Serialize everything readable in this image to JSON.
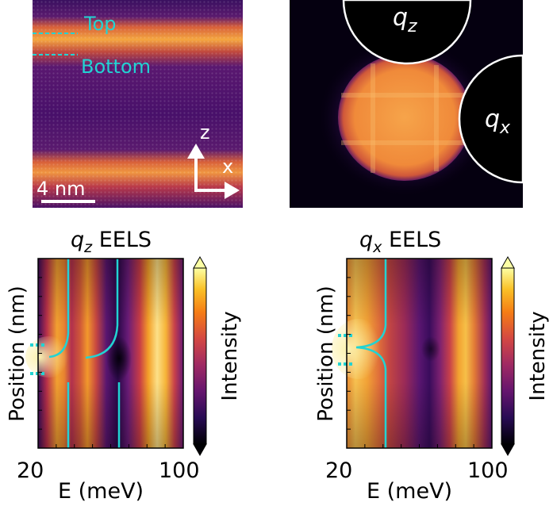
{
  "stem_image": {
    "top_label": "Top",
    "bottom_label": "Bottom",
    "scale_bar": "4 nm",
    "axis_z": "z",
    "axis_x": "x"
  },
  "diffraction_image": {
    "aperture_z": "q",
    "aperture_z_sub": "z",
    "aperture_x": "q",
    "aperture_x_sub": "x"
  },
  "eels_left": {
    "title_q": "q",
    "title_sub": "z",
    "title_rest": " EELS",
    "ylabel": "Position (nm)",
    "xlabel": "E (meV)",
    "x_min_label": "20",
    "x_max_label": "100",
    "colorbar_label": "Intensity"
  },
  "eels_right": {
    "title_q": "q",
    "title_sub": "x",
    "title_rest": " EELS",
    "ylabel": "Position (nm)",
    "xlabel": "E (meV)",
    "x_min_label": "20",
    "x_max_label": "100",
    "colorbar_label": "Intensity"
  },
  "colors": {
    "cyan": "#22d3d3",
    "dark": "#0c0416",
    "bright": "#fcf4a8",
    "orange": "#f2a020",
    "purple": "#6a1e78"
  }
}
